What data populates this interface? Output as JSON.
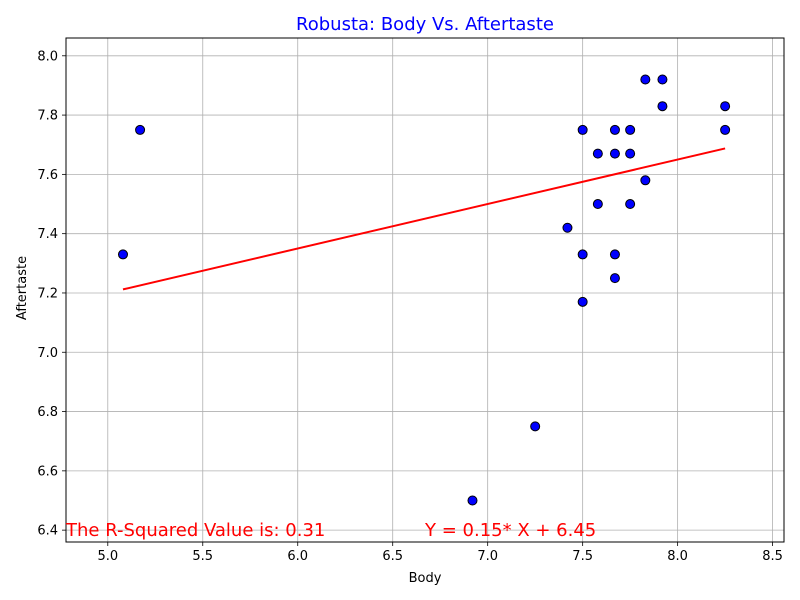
{
  "chart_data": {
    "type": "scatter",
    "title": "Robusta: Body Vs. Aftertaste",
    "title_color": "#0000ff",
    "xlabel": "Body",
    "ylabel": "Aftertaste",
    "xlim": [
      4.78,
      8.56
    ],
    "ylim": [
      6.36,
      8.06
    ],
    "xticks": [
      5.0,
      5.5,
      6.0,
      6.5,
      7.0,
      7.5,
      8.0,
      8.5
    ],
    "yticks": [
      6.4,
      6.6,
      6.8,
      7.0,
      7.2,
      7.4,
      7.6,
      7.8,
      8.0
    ],
    "xtick_labels": [
      "5.0",
      "5.5",
      "6.0",
      "6.5",
      "7.0",
      "7.5",
      "8.0",
      "8.5"
    ],
    "ytick_labels": [
      "6.4",
      "6.6",
      "6.8",
      "7.0",
      "7.2",
      "7.4",
      "7.6",
      "7.8",
      "8.0"
    ],
    "grid": true,
    "marker_color": "#0000ff",
    "marker_edge_color": "#000000",
    "points": [
      {
        "x": 5.08,
        "y": 7.33
      },
      {
        "x": 5.17,
        "y": 7.75
      },
      {
        "x": 6.92,
        "y": 6.5
      },
      {
        "x": 7.25,
        "y": 6.75
      },
      {
        "x": 7.42,
        "y": 7.42
      },
      {
        "x": 7.5,
        "y": 7.75
      },
      {
        "x": 7.5,
        "y": 7.33
      },
      {
        "x": 7.5,
        "y": 7.17
      },
      {
        "x": 7.58,
        "y": 7.67
      },
      {
        "x": 7.58,
        "y": 7.5
      },
      {
        "x": 7.67,
        "y": 7.75
      },
      {
        "x": 7.67,
        "y": 7.67
      },
      {
        "x": 7.67,
        "y": 7.33
      },
      {
        "x": 7.67,
        "y": 7.25
      },
      {
        "x": 7.75,
        "y": 7.75
      },
      {
        "x": 7.75,
        "y": 7.67
      },
      {
        "x": 7.75,
        "y": 7.5
      },
      {
        "x": 7.83,
        "y": 7.92
      },
      {
        "x": 7.83,
        "y": 7.58
      },
      {
        "x": 7.92,
        "y": 7.92
      },
      {
        "x": 7.92,
        "y": 7.83
      },
      {
        "x": 8.25,
        "y": 7.83
      },
      {
        "x": 8.25,
        "y": 7.75
      }
    ],
    "regression": {
      "slope": 0.15,
      "intercept": 6.45,
      "x_range": [
        5.08,
        8.25
      ],
      "color": "#ff0000"
    },
    "annotations": [
      {
        "text": "The R-Squared Value is: 0.31",
        "x": 4.78,
        "y": 6.38,
        "color": "#ff0000"
      },
      {
        "text": "Y = 0.15* X + 6.45",
        "x": 6.67,
        "y": 6.38,
        "color": "#ff0000"
      }
    ]
  }
}
